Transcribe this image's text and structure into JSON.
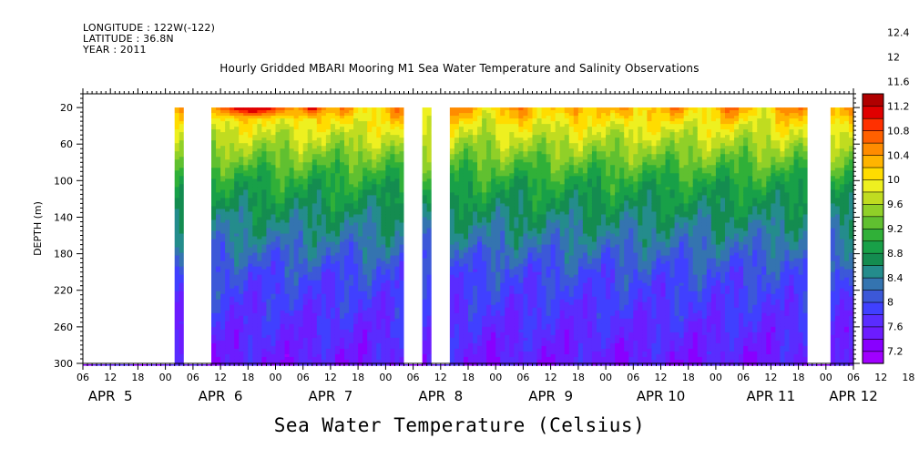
{
  "header": {
    "longitude": "LONGITUDE : 122W(-122)",
    "latitude": "LATITUDE : 36.8N",
    "year": "YEAR : 2011"
  },
  "chart_data": {
    "type": "heatmap",
    "title": "Hourly Gridded MBARI Mooring M1 Sea Water Temperature and Salinity Observations",
    "xlabel": "Sea Water Temperature (Celsius)",
    "ylabel": "DEPTH (m)",
    "x_unit": "hours after 2011-04-05 00:00",
    "xlim": [
      6,
      174
    ],
    "ylim": [
      300,
      5
    ],
    "y_ticks": [
      20,
      60,
      100,
      140,
      180,
      220,
      260,
      300
    ],
    "x_hour_ticks": [
      "06",
      "12",
      "18",
      "00",
      "06",
      "12",
      "18",
      "00",
      "06",
      "12",
      "18",
      "00",
      "06",
      "12",
      "18",
      "00",
      "06",
      "12",
      "18",
      "00",
      "06",
      "12",
      "18",
      "00",
      "06",
      "12",
      "18",
      "00",
      "06",
      "12",
      "18",
      "00",
      "06"
    ],
    "x_day_labels": [
      {
        "label": "APR  5",
        "hour": 12
      },
      {
        "label": "APR  6",
        "hour": 36
      },
      {
        "label": "APR  7",
        "hour": 60
      },
      {
        "label": "APR  8",
        "hour": 84
      },
      {
        "label": "APR  9",
        "hour": 108
      },
      {
        "label": "APR 10",
        "hour": 132
      },
      {
        "label": "APR 11",
        "hour": 156
      },
      {
        "label": "APR 12",
        "hour": 174
      }
    ],
    "colorbar": {
      "levels": [
        7.2,
        7.6,
        8,
        8.4,
        8.8,
        9.2,
        9.6,
        10,
        10.4,
        10.8,
        11.2,
        11.6,
        12,
        12.4
      ],
      "colors": [
        "#a000ff",
        "#8800ff",
        "#6c1cff",
        "#5a2cff",
        "#4040ff",
        "#3c58d8",
        "#3474b0",
        "#248c8c",
        "#148c50",
        "#18a048",
        "#30b038",
        "#60c030",
        "#90d028",
        "#c0dc20",
        "#eef020",
        "#ffdc00",
        "#ffb400",
        "#ff8c00",
        "#ff6000",
        "#ff3000",
        "#e00000",
        "#b00000"
      ]
    },
    "no_data_hour_ranges": [
      [
        6,
        26
      ],
      [
        28,
        34
      ],
      [
        76,
        80
      ],
      [
        82,
        86
      ],
      [
        164,
        169
      ]
    ],
    "temperature_profile": {
      "depths": [
        20,
        40,
        60,
        80,
        100,
        120,
        140,
        160,
        180,
        200,
        220,
        240,
        260,
        280,
        300
      ],
      "temps": [
        10.3,
        9.9,
        9.6,
        9.3,
        9.0,
        8.8,
        8.6,
        8.4,
        8.2,
        8.0,
        7.9,
        7.8,
        7.7,
        7.6,
        7.5
      ]
    },
    "warm_surface_events": [
      {
        "hour_start": 34,
        "hour_end": 52,
        "peak_temp": 11.8
      },
      {
        "hour_start": 53,
        "hour_end": 59,
        "peak_temp": 11.4
      }
    ]
  }
}
